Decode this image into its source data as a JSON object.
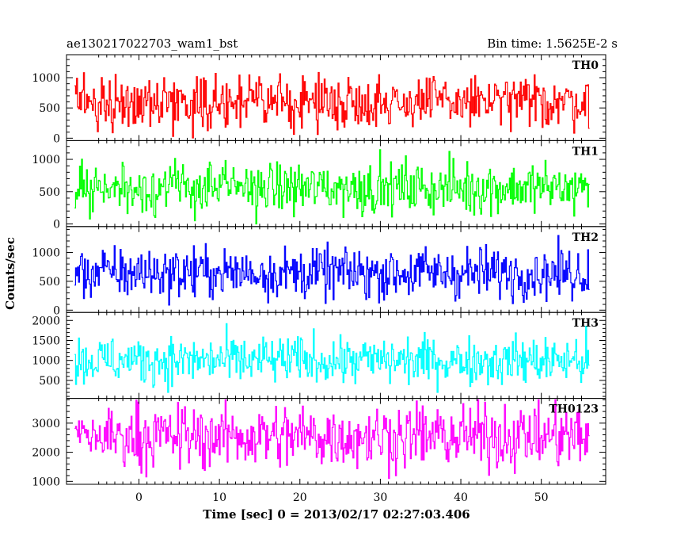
{
  "chart_data": {
    "type": "line",
    "title_left": "ae130217022703_wam1_bst",
    "title_right": "Bin time: 1.5625E-2 s",
    "xlabel": "Time [sec] 0 = 2013/02/17 02:27:03.406",
    "ylabel": "Counts/sec",
    "xlim": [
      -9,
      58
    ],
    "x_ticks": [
      0,
      10,
      20,
      30,
      40,
      50
    ],
    "x_tick_labels": [
      "0",
      "10",
      "20",
      "30",
      "40",
      "50"
    ],
    "data_x_range": [
      -8,
      56
    ],
    "grid": false,
    "panels": [
      {
        "name": "TH0",
        "color": "#ff0000",
        "ylim": [
          -40,
          1380
        ],
        "y_ticks": [
          0,
          500,
          1000
        ],
        "y_tick_labels": [
          "0",
          "500",
          "1000"
        ],
        "mean": 600,
        "spread": 210,
        "min": 0,
        "max": 1340
      },
      {
        "name": "TH1",
        "color": "#00ff00",
        "ylim": [
          -40,
          1290
        ],
        "y_ticks": [
          0,
          500,
          1000
        ],
        "y_tick_labels": [
          "0",
          "500",
          "1000"
        ],
        "mean": 560,
        "spread": 200,
        "min": 0,
        "max": 1250
      },
      {
        "name": "TH2",
        "color": "#0000ff",
        "ylim": [
          -40,
          1450
        ],
        "y_ticks": [
          0,
          500,
          1000
        ],
        "y_tick_labels": [
          "0",
          "500",
          "1000"
        ],
        "mean": 650,
        "spread": 220,
        "min": 0,
        "max": 1420
      },
      {
        "name": "TH3",
        "color": "#00ffff",
        "ylim": [
          50,
          2200
        ],
        "y_ticks": [
          500,
          1000,
          1500,
          2000
        ],
        "y_tick_labels": [
          "500",
          "1000",
          "1500",
          "2000"
        ],
        "mean": 1000,
        "spread": 300,
        "min": 200,
        "max": 2150
      },
      {
        "name": "TH0123",
        "color": "#ff00ff",
        "ylim": [
          900,
          3850
        ],
        "y_ticks": [
          1000,
          2000,
          3000
        ],
        "y_tick_labels": [
          "1000",
          "2000",
          "3000"
        ],
        "mean": 2550,
        "spread": 550,
        "min": 1000,
        "max": 3800
      }
    ]
  }
}
